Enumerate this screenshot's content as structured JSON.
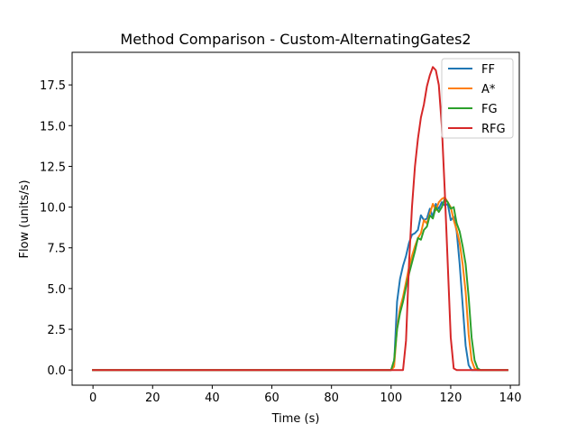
{
  "chart_data": {
    "type": "line",
    "title": "Method Comparison - Custom-AlternatingGates2",
    "xlabel": "Time (s)",
    "ylabel": "Flow (units/s)",
    "xlim": [
      -7,
      143
    ],
    "ylim": [
      -0.93,
      19.5
    ],
    "xticks": [
      0,
      20,
      40,
      60,
      80,
      100,
      120,
      140
    ],
    "yticks": [
      0.0,
      2.5,
      5.0,
      7.5,
      10.0,
      12.5,
      15.0,
      17.5
    ],
    "xtick_labels": [
      "0",
      "20",
      "40",
      "60",
      "80",
      "100",
      "120",
      "140"
    ],
    "ytick_labels": [
      "0.0",
      "2.5",
      "5.0",
      "7.5",
      "10.0",
      "12.5",
      "15.0",
      "17.5"
    ],
    "grid": false,
    "legend_position": "top-right",
    "series": [
      {
        "name": "FF",
        "color": "#1f77b4",
        "points": [
          [
            0,
            0
          ],
          [
            100,
            0
          ],
          [
            101,
            0.3
          ],
          [
            102,
            4.2
          ],
          [
            103,
            5.6
          ],
          [
            104,
            6.4
          ],
          [
            105,
            7.0
          ],
          [
            106,
            7.8
          ],
          [
            107,
            8.3
          ],
          [
            108,
            8.4
          ],
          [
            109,
            8.6
          ],
          [
            110,
            9.5
          ],
          [
            111,
            9.2
          ],
          [
            112,
            9.3
          ],
          [
            113,
            9.9
          ],
          [
            114,
            9.4
          ],
          [
            115,
            10.2
          ],
          [
            116,
            9.9
          ],
          [
            117,
            10.3
          ],
          [
            118,
            10.1
          ],
          [
            119,
            10.2
          ],
          [
            120,
            9.2
          ],
          [
            121,
            9.4
          ],
          [
            122,
            8.5
          ],
          [
            123,
            6.5
          ],
          [
            124,
            4.0
          ],
          [
            125,
            1.5
          ],
          [
            126,
            0.3
          ],
          [
            127,
            0
          ],
          [
            139,
            0
          ]
        ]
      },
      {
        "name": "A*",
        "color": "#ff7f0e",
        "points": [
          [
            0,
            0
          ],
          [
            100,
            0
          ],
          [
            101,
            0.2
          ],
          [
            102,
            2.6
          ],
          [
            103,
            3.8
          ],
          [
            104,
            4.5
          ],
          [
            105,
            5.4
          ],
          [
            106,
            6.3
          ],
          [
            107,
            7.0
          ],
          [
            108,
            7.6
          ],
          [
            109,
            8.1
          ],
          [
            110,
            8.4
          ],
          [
            111,
            9.2
          ],
          [
            112,
            9.0
          ],
          [
            113,
            9.6
          ],
          [
            114,
            10.2
          ],
          [
            115,
            9.8
          ],
          [
            116,
            10.3
          ],
          [
            117,
            10.5
          ],
          [
            118,
            10.6
          ],
          [
            119,
            10.3
          ],
          [
            120,
            10.0
          ],
          [
            121,
            9.2
          ],
          [
            122,
            8.6
          ],
          [
            123,
            7.8
          ],
          [
            124,
            6.5
          ],
          [
            125,
            4.8
          ],
          [
            126,
            2.2
          ],
          [
            127,
            0.6
          ],
          [
            128,
            0.1
          ],
          [
            129,
            0
          ],
          [
            139,
            0
          ]
        ]
      },
      {
        "name": "FG",
        "color": "#2ca02c",
        "points": [
          [
            0,
            0
          ],
          [
            100,
            0
          ],
          [
            101,
            0.6
          ],
          [
            102,
            2.5
          ],
          [
            103,
            3.5
          ],
          [
            104,
            4.2
          ],
          [
            105,
            5.1
          ],
          [
            106,
            5.9
          ],
          [
            107,
            6.6
          ],
          [
            108,
            7.3
          ],
          [
            109,
            8.1
          ],
          [
            110,
            8.0
          ],
          [
            111,
            8.6
          ],
          [
            112,
            8.8
          ],
          [
            113,
            9.5
          ],
          [
            114,
            9.3
          ],
          [
            115,
            10.0
          ],
          [
            116,
            9.7
          ],
          [
            117,
            10.0
          ],
          [
            118,
            10.5
          ],
          [
            119,
            10.3
          ],
          [
            120,
            9.9
          ],
          [
            121,
            10.0
          ],
          [
            122,
            9.0
          ],
          [
            123,
            8.5
          ],
          [
            124,
            7.6
          ],
          [
            125,
            6.5
          ],
          [
            126,
            4.5
          ],
          [
            127,
            2.0
          ],
          [
            128,
            0.6
          ],
          [
            129,
            0.1
          ],
          [
            130,
            0
          ],
          [
            139,
            0
          ]
        ]
      },
      {
        "name": "RFG",
        "color": "#d62728",
        "points": [
          [
            0,
            0
          ],
          [
            104,
            0
          ],
          [
            105,
            1.8
          ],
          [
            106,
            6.5
          ],
          [
            107,
            10.0
          ],
          [
            108,
            12.5
          ],
          [
            109,
            14.2
          ],
          [
            110,
            15.5
          ],
          [
            111,
            16.3
          ],
          [
            112,
            17.4
          ],
          [
            113,
            18.1
          ],
          [
            114,
            18.6
          ],
          [
            115,
            18.4
          ],
          [
            116,
            17.5
          ],
          [
            117,
            15.0
          ],
          [
            118,
            11.0
          ],
          [
            119,
            6.5
          ],
          [
            120,
            2.0
          ],
          [
            121,
            0.1
          ],
          [
            122,
            0
          ],
          [
            139,
            0
          ]
        ]
      }
    ]
  }
}
